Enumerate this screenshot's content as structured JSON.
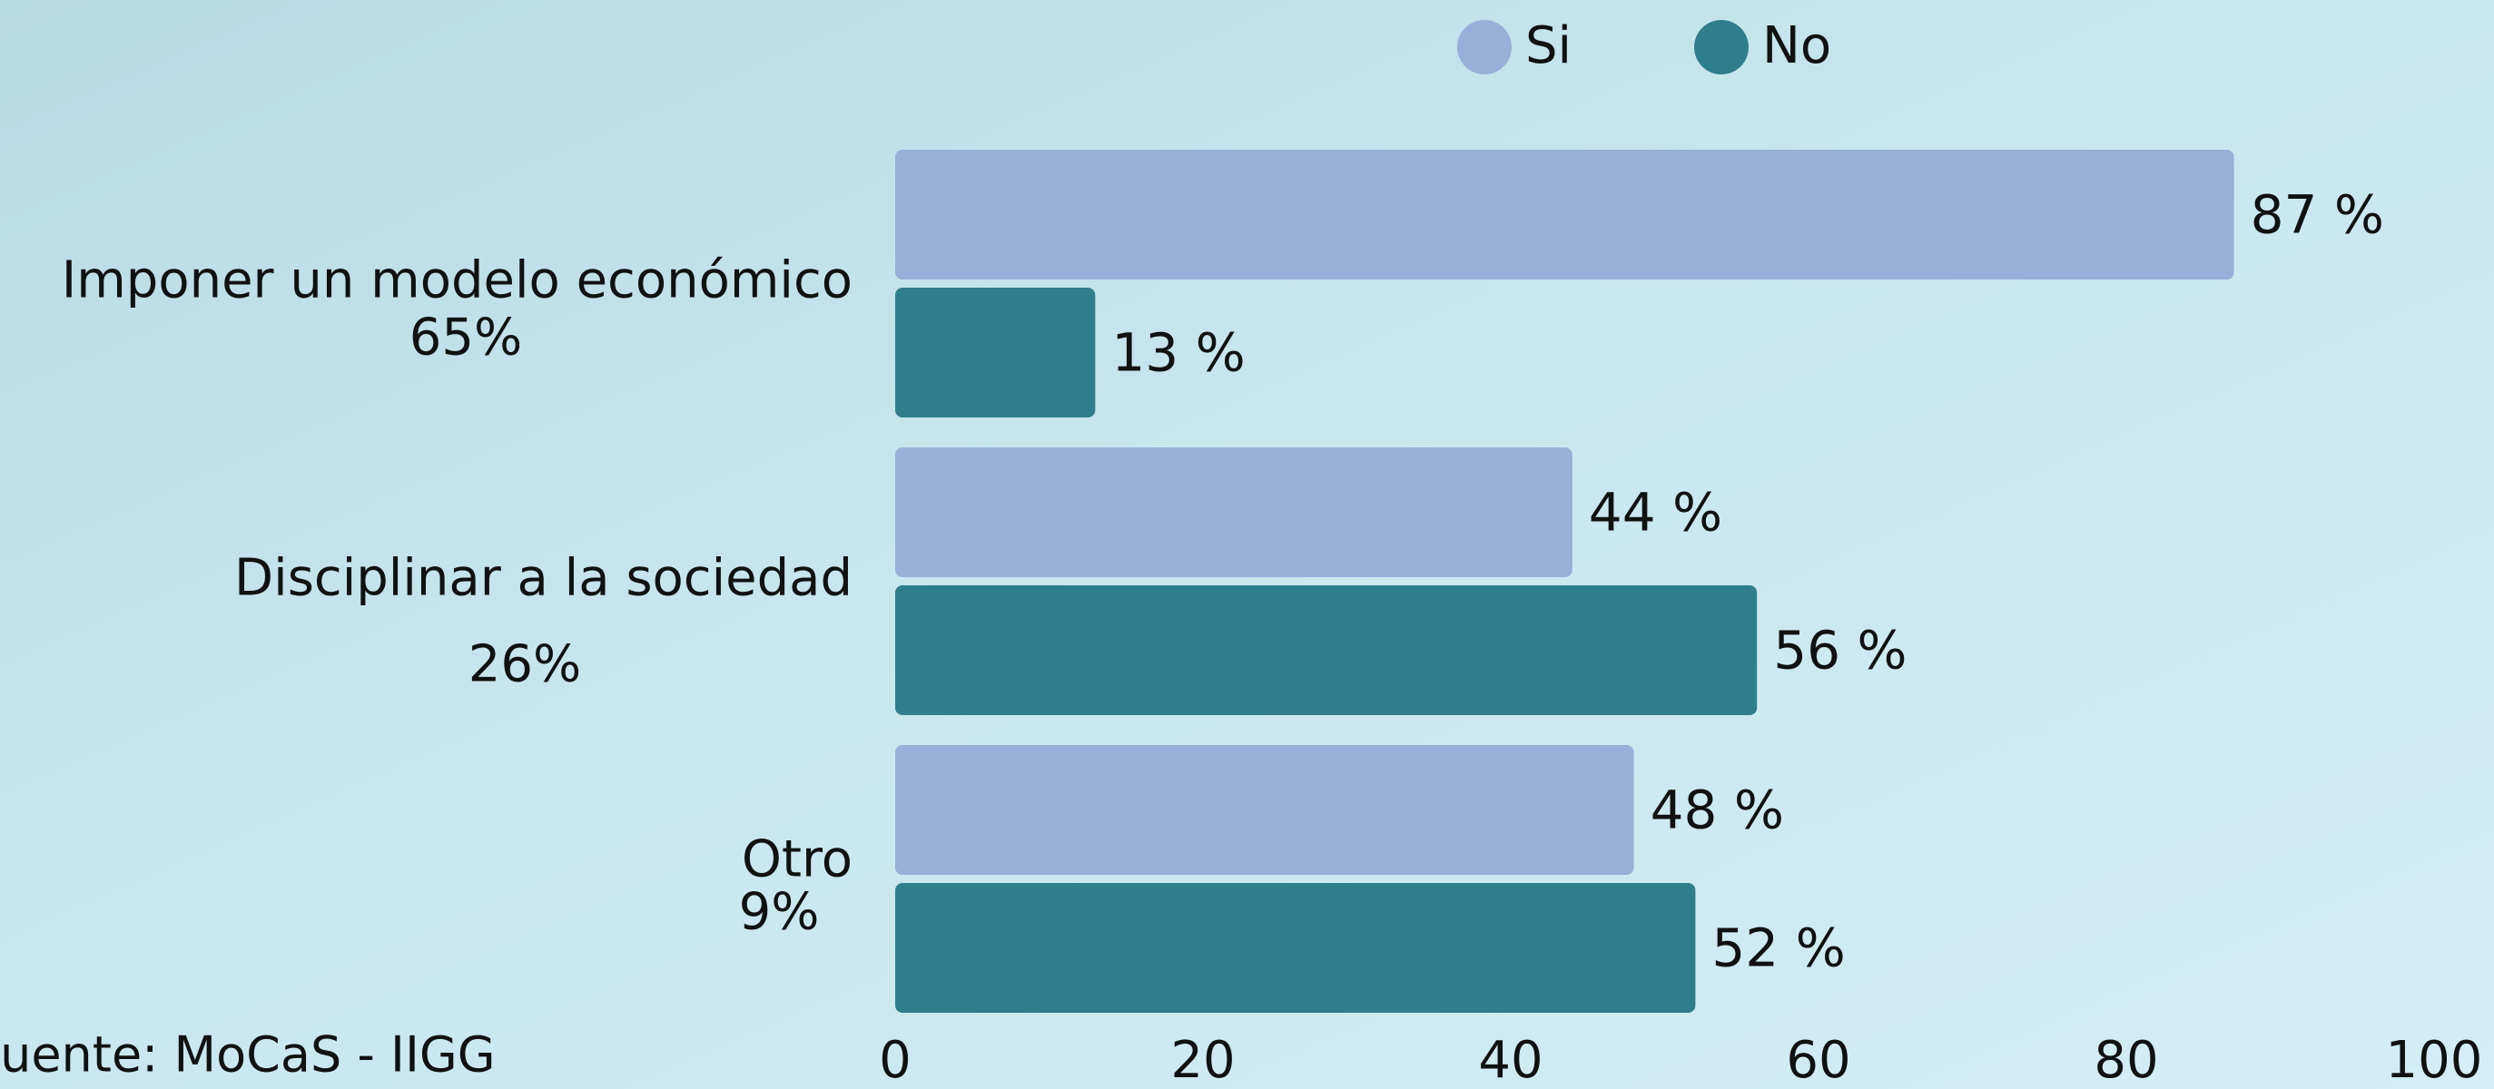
{
  "chart_data": {
    "type": "hbar",
    "categories": [
      "Imponer un modelo económico",
      "Disciplinar a la sociedad",
      "Otro"
    ],
    "category_notes": [
      "65%",
      "26%",
      "9%"
    ],
    "series": [
      {
        "name": "Si",
        "color": "#97afd9",
        "values": [
          87,
          44,
          48
        ],
        "value_labels": [
          "87 %",
          "44 %",
          "48 %"
        ]
      },
      {
        "name": "No",
        "color": "#2f7e8c",
        "values": [
          13,
          56,
          52
        ],
        "value_labels": [
          "13 %",
          "56 %",
          "52 %"
        ]
      }
    ],
    "xlim": [
      0,
      100
    ],
    "xticks": [
      0,
      20,
      40,
      60,
      80,
      100
    ],
    "source": "Fuente: MoCaS - IIGG",
    "legend": "top"
  }
}
